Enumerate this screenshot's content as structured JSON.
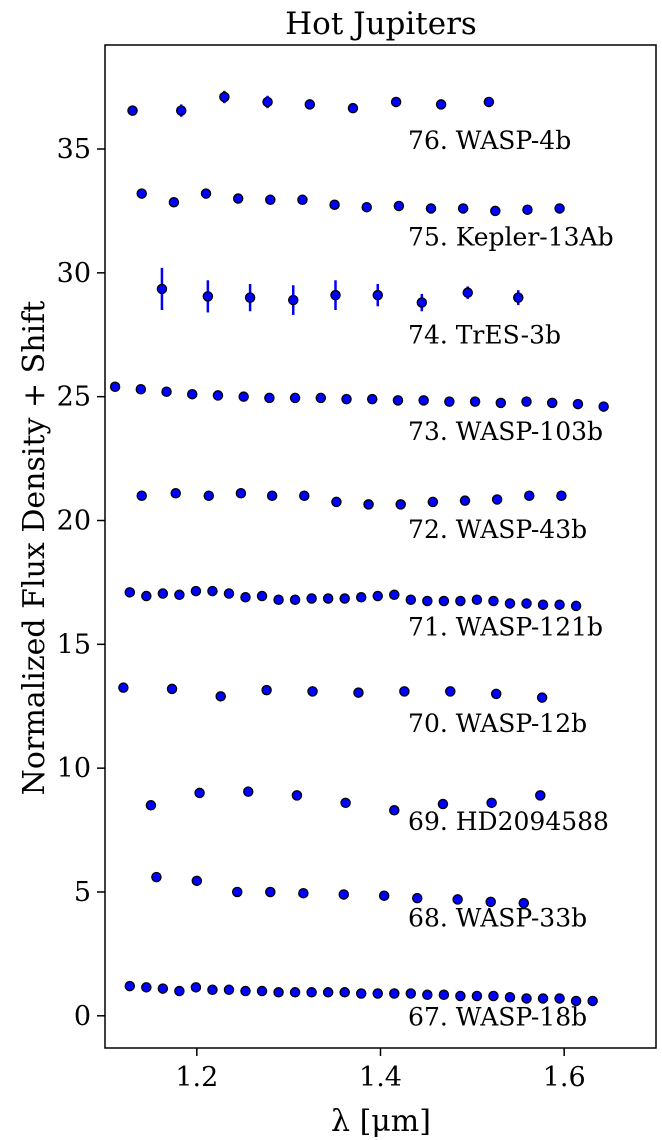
{
  "chart_data": {
    "type": "scatter",
    "title": "Hot Jupiters",
    "xlabel": "λ [μm]",
    "ylabel": "Normalized Flux Density + Shift",
    "xlim": [
      1.1,
      1.7
    ],
    "ylim": [
      -1.3,
      39.2
    ],
    "xticks": [
      1.2,
      1.4,
      1.6
    ],
    "yticks": [
      0,
      5,
      10,
      15,
      20,
      25,
      30,
      35
    ],
    "grid": false,
    "marker_color": "#0000ff",
    "marker_edge": "#000000",
    "series": [
      {
        "name": "67. WASP-18b",
        "x": [
          1.127,
          1.145,
          1.163,
          1.181,
          1.199,
          1.217,
          1.235,
          1.253,
          1.271,
          1.289,
          1.307,
          1.325,
          1.343,
          1.361,
          1.379,
          1.397,
          1.415,
          1.433,
          1.451,
          1.469,
          1.487,
          1.505,
          1.523,
          1.541,
          1.559,
          1.577,
          1.595,
          1.613,
          1.631
        ],
        "y": [
          1.2,
          1.15,
          1.1,
          1.0,
          1.15,
          1.05,
          1.05,
          1.0,
          1.0,
          0.95,
          0.95,
          0.95,
          0.95,
          0.95,
          0.9,
          0.9,
          0.9,
          0.9,
          0.85,
          0.85,
          0.8,
          0.8,
          0.8,
          0.75,
          0.7,
          0.7,
          0.7,
          0.6,
          0.6
        ],
        "err": [
          0.1,
          0.1,
          0.1,
          0.1,
          0.1,
          0.1,
          0.1,
          0.1,
          0.1,
          0.1,
          0.1,
          0.1,
          0.1,
          0.1,
          0.1,
          0.1,
          0.1,
          0.1,
          0.1,
          0.1,
          0.1,
          0.1,
          0.1,
          0.1,
          0.1,
          0.1,
          0.1,
          0.1,
          0.1
        ]
      },
      {
        "name": "68. WASP-33b",
        "x": [
          1.156,
          1.2,
          1.244,
          1.28,
          1.316,
          1.36,
          1.404,
          1.44,
          1.484,
          1.52,
          1.556
        ],
        "y": [
          5.6,
          5.45,
          5.0,
          5.0,
          4.95,
          4.9,
          4.85,
          4.75,
          4.7,
          4.6,
          4.55
        ],
        "err": [
          0.1,
          0.1,
          0.1,
          0.1,
          0.1,
          0.1,
          0.1,
          0.1,
          0.1,
          0.1,
          0.1
        ]
      },
      {
        "name": "69. HD2094588",
        "x": [
          1.15,
          1.203,
          1.256,
          1.309,
          1.362,
          1.415,
          1.468,
          1.521,
          1.574
        ],
        "y": [
          8.5,
          9.0,
          9.05,
          8.9,
          8.6,
          8.3,
          8.55,
          8.6,
          8.9
        ],
        "err": [
          0.1,
          0.1,
          0.1,
          0.1,
          0.1,
          0.1,
          0.1,
          0.1,
          0.1
        ]
      },
      {
        "name": "70. WASP-12b",
        "x": [
          1.12,
          1.173,
          1.226,
          1.276,
          1.326,
          1.376,
          1.426,
          1.476,
          1.526,
          1.576
        ],
        "y": [
          13.25,
          13.2,
          12.9,
          13.15,
          13.1,
          13.05,
          13.1,
          13.1,
          13.0,
          12.85
        ],
        "err": [
          0.1,
          0.1,
          0.1,
          0.1,
          0.1,
          0.1,
          0.1,
          0.1,
          0.1,
          0.1
        ]
      },
      {
        "name": "71. WASP-121b",
        "x": [
          1.127,
          1.145,
          1.163,
          1.181,
          1.199,
          1.217,
          1.235,
          1.253,
          1.271,
          1.289,
          1.307,
          1.325,
          1.343,
          1.361,
          1.379,
          1.397,
          1.415,
          1.433,
          1.451,
          1.469,
          1.487,
          1.505,
          1.523,
          1.541,
          1.559,
          1.577,
          1.595,
          1.613
        ],
        "y": [
          17.1,
          16.95,
          17.05,
          17.0,
          17.15,
          17.15,
          17.05,
          16.9,
          16.95,
          16.8,
          16.8,
          16.85,
          16.85,
          16.85,
          16.9,
          16.95,
          17.0,
          16.8,
          16.75,
          16.75,
          16.75,
          16.8,
          16.75,
          16.65,
          16.65,
          16.6,
          16.6,
          16.55
        ],
        "err": [
          0.1,
          0.1,
          0.1,
          0.1,
          0.1,
          0.1,
          0.1,
          0.1,
          0.1,
          0.1,
          0.1,
          0.1,
          0.1,
          0.1,
          0.1,
          0.1,
          0.1,
          0.1,
          0.1,
          0.1,
          0.1,
          0.1,
          0.1,
          0.1,
          0.1,
          0.1,
          0.1,
          0.1
        ]
      },
      {
        "name": "72. WASP-43b",
        "x": [
          1.14,
          1.177,
          1.213,
          1.248,
          1.282,
          1.317,
          1.352,
          1.387,
          1.422,
          1.457,
          1.492,
          1.527,
          1.562,
          1.597
        ],
        "y": [
          21.0,
          21.1,
          21.0,
          21.1,
          21.0,
          21.0,
          20.75,
          20.65,
          20.65,
          20.75,
          20.8,
          20.85,
          21.0,
          21.0
        ],
        "err": [
          0.1,
          0.1,
          0.1,
          0.1,
          0.1,
          0.1,
          0.1,
          0.1,
          0.1,
          0.1,
          0.1,
          0.1,
          0.1,
          0.1
        ]
      },
      {
        "name": "73. WASP-103b",
        "x": [
          1.111,
          1.139,
          1.167,
          1.195,
          1.223,
          1.251,
          1.279,
          1.307,
          1.335,
          1.363,
          1.391,
          1.419,
          1.447,
          1.475,
          1.503,
          1.531,
          1.559,
          1.587,
          1.615,
          1.643
        ],
        "y": [
          25.4,
          25.3,
          25.2,
          25.1,
          25.05,
          25.0,
          24.95,
          24.95,
          24.95,
          24.9,
          24.9,
          24.85,
          24.85,
          24.8,
          24.8,
          24.75,
          24.8,
          24.75,
          24.7,
          24.6
        ],
        "err": [
          0.1,
          0.1,
          0.1,
          0.1,
          0.1,
          0.1,
          0.1,
          0.1,
          0.1,
          0.1,
          0.1,
          0.1,
          0.1,
          0.1,
          0.1,
          0.1,
          0.1,
          0.1,
          0.1,
          0.1
        ]
      },
      {
        "name": "74. TrES-3b",
        "x": [
          1.162,
          1.212,
          1.258,
          1.305,
          1.351,
          1.397,
          1.445,
          1.495,
          1.55
        ],
        "y": [
          29.35,
          29.05,
          29.0,
          28.9,
          29.1,
          29.1,
          28.8,
          29.2,
          29.0
        ],
        "err": [
          0.85,
          0.65,
          0.55,
          0.6,
          0.6,
          0.45,
          0.35,
          0.25,
          0.3
        ]
      },
      {
        "name": "75. Kepler-13Ab",
        "x": [
          1.14,
          1.175,
          1.21,
          1.245,
          1.28,
          1.315,
          1.35,
          1.385,
          1.42,
          1.455,
          1.49,
          1.525,
          1.56,
          1.595
        ],
        "y": [
          33.2,
          32.85,
          33.2,
          33.0,
          32.95,
          32.95,
          32.75,
          32.65,
          32.7,
          32.6,
          32.6,
          32.5,
          32.55,
          32.6
        ],
        "err": [
          0.1,
          0.1,
          0.1,
          0.1,
          0.1,
          0.1,
          0.1,
          0.1,
          0.1,
          0.1,
          0.1,
          0.1,
          0.1,
          0.1
        ]
      },
      {
        "name": "76. WASP-4b",
        "x": [
          1.13,
          1.183,
          1.23,
          1.277,
          1.323,
          1.37,
          1.417,
          1.466,
          1.518
        ],
        "y": [
          36.55,
          36.55,
          37.1,
          36.9,
          36.8,
          36.65,
          36.9,
          36.8,
          36.9
        ],
        "err": [
          0.2,
          0.25,
          0.25,
          0.25,
          0.1,
          0.1,
          0.1,
          0.1,
          0.1
        ]
      }
    ],
    "labels": [
      {
        "text": "67. WASP-18b",
        "x": 1.43,
        "y": -0.4
      },
      {
        "text": "68. WASP-33b",
        "x": 1.43,
        "y": 3.6
      },
      {
        "text": "69. HD2094588",
        "x": 1.43,
        "y": 7.5
      },
      {
        "text": "70. WASP-12b",
        "x": 1.43,
        "y": 11.45
      },
      {
        "text": "71. WASP-121b",
        "x": 1.43,
        "y": 15.35
      },
      {
        "text": "72. WASP-43b",
        "x": 1.43,
        "y": 19.3
      },
      {
        "text": "73. WASP-103b",
        "x": 1.43,
        "y": 23.25
      },
      {
        "text": "74. TrES-3b",
        "x": 1.43,
        "y": 27.15
      },
      {
        "text": "75. Kepler-13Ab",
        "x": 1.43,
        "y": 31.1
      },
      {
        "text": "76. WASP-4b",
        "x": 1.43,
        "y": 35.0
      }
    ]
  }
}
